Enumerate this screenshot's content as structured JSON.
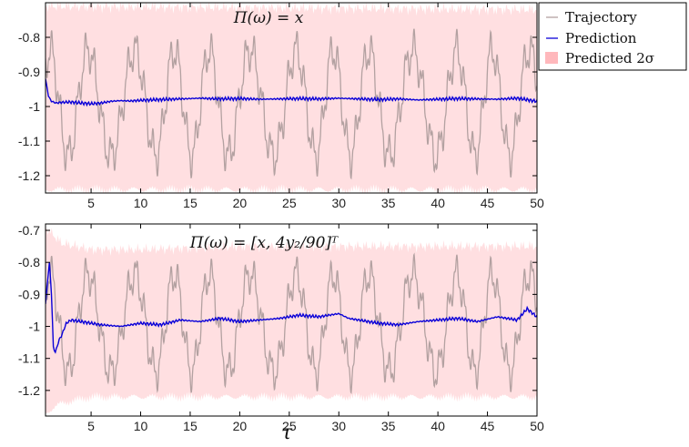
{
  "colors": {
    "trajectory": "#b3a1a1",
    "prediction": "#0a00d8",
    "band": "#ffdfe1",
    "axes": "#000000"
  },
  "legend": {
    "placement": "top-right, outside axes",
    "entries": [
      {
        "label": "Trajectory",
        "symbol": "line",
        "color": "#b3a1a1"
      },
      {
        "label": "Prediction",
        "symbol": "line",
        "color": "#0a00d8"
      },
      {
        "label": "Predicted 2σ",
        "symbol": "patch",
        "color": "#ffb8bc"
      }
    ]
  },
  "chart_data": [
    {
      "type": "line",
      "annotation": "Π(ω) = x",
      "xlabel": "",
      "ylabel": "",
      "xlim": [
        0.4,
        50
      ],
      "ylim": [
        -1.25,
        -0.7
      ],
      "xticks": [
        5,
        10,
        15,
        20,
        25,
        30,
        35,
        40,
        45,
        50
      ],
      "xtick_labels": [
        "5",
        "10",
        "15",
        "20",
        "25",
        "30",
        "35",
        "40",
        "45",
        "50"
      ],
      "yticks": [
        -1.2,
        -1.1,
        -1,
        -0.9,
        -0.8
      ],
      "ytick_labels": [
        "-1.2",
        "-1.1",
        "-1",
        "-0.9",
        "-0.8"
      ],
      "grid": false,
      "series": [
        {
          "name": "Trajectory",
          "kind": "oscillation",
          "x_start": 0.4,
          "x_end": 50,
          "mean": -0.99,
          "amplitude": 0.18,
          "period": 4.05,
          "harmonic_period": 0.85
        },
        {
          "name": "Prediction",
          "x": [
            0.4,
            0.7,
            1.0,
            1.5,
            2,
            3,
            4,
            5,
            6,
            7,
            8,
            9,
            10,
            12,
            14,
            16,
            18,
            20,
            22,
            24,
            26,
            28,
            30,
            32,
            34,
            36,
            38,
            40,
            42,
            44,
            46,
            48,
            50
          ],
          "y": [
            -0.92,
            -0.97,
            -0.985,
            -0.99,
            -0.988,
            -0.987,
            -0.99,
            -0.992,
            -0.99,
            -0.985,
            -0.983,
            -0.984,
            -0.982,
            -0.98,
            -0.978,
            -0.976,
            -0.978,
            -0.977,
            -0.979,
            -0.978,
            -0.977,
            -0.978,
            -0.976,
            -0.978,
            -0.98,
            -0.978,
            -0.981,
            -0.979,
            -0.977,
            -0.978,
            -0.979,
            -0.976,
            -0.985
          ]
        },
        {
          "name": "Predicted 2σ",
          "kind": "band",
          "x": [
            0.4,
            50
          ],
          "lower": [
            -1.24,
            -1.24
          ],
          "upper": [
            -0.71,
            -0.72
          ]
        }
      ]
    },
    {
      "type": "line",
      "annotation": "Π(ω) = [x, 4y₂/90]ᵀ",
      "xlabel": "τ",
      "ylabel": "",
      "xlim": [
        0.4,
        50
      ],
      "ylim": [
        -1.28,
        -0.68
      ],
      "xticks": [
        5,
        10,
        15,
        20,
        25,
        30,
        35,
        40,
        45,
        50
      ],
      "xtick_labels": [
        "5",
        "10",
        "15",
        "20",
        "25",
        "30",
        "35",
        "40",
        "45",
        "50"
      ],
      "yticks": [
        -1.2,
        -1.1,
        -1,
        -0.9,
        -0.8,
        -0.7
      ],
      "ytick_labels": [
        "-1.2",
        "-1.1",
        "-1",
        "-0.9",
        "-0.8",
        "-0.7"
      ],
      "grid": false,
      "series": [
        {
          "name": "Trajectory",
          "kind": "oscillation",
          "x_start": 0.4,
          "x_end": 50,
          "mean": -0.99,
          "amplitude": 0.18,
          "period": 4.05,
          "harmonic_period": 0.85
        },
        {
          "name": "Prediction",
          "x": [
            0.4,
            0.6,
            0.8,
            1.0,
            1.2,
            1.4,
            1.6,
            1.8,
            2.0,
            2.5,
            3,
            4,
            5,
            6,
            8,
            10,
            12,
            14,
            16,
            18,
            20,
            22,
            24,
            26,
            28,
            30,
            31,
            32,
            34,
            36,
            38,
            40,
            42,
            44,
            46,
            48,
            49,
            50
          ],
          "y": [
            -0.93,
            -0.86,
            -0.8,
            -0.9,
            -1.07,
            -1.08,
            -1.06,
            -1.04,
            -1.03,
            -0.99,
            -0.98,
            -0.985,
            -0.99,
            -0.995,
            -1.0,
            -0.99,
            -0.995,
            -0.98,
            -0.985,
            -0.975,
            -0.985,
            -0.98,
            -0.975,
            -0.965,
            -0.97,
            -0.96,
            -0.975,
            -0.98,
            -0.99,
            -0.995,
            -0.985,
            -0.98,
            -0.975,
            -0.985,
            -0.97,
            -0.98,
            -0.945,
            -0.97
          ]
        },
        {
          "name": "Predicted 2σ",
          "kind": "band",
          "x": [
            0.4,
            2,
            5,
            10,
            20,
            30,
            40,
            50
          ],
          "lower": [
            -1.27,
            -1.24,
            -1.22,
            -1.22,
            -1.22,
            -1.22,
            -1.22,
            -1.22
          ],
          "upper": [
            -0.69,
            -0.74,
            -0.76,
            -0.76,
            -0.75,
            -0.75,
            -0.75,
            -0.75
          ]
        }
      ]
    }
  ]
}
